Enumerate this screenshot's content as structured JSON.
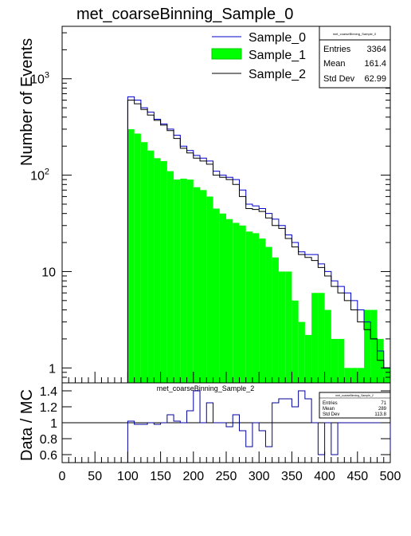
{
  "chart_data": [
    {
      "type": "histogram",
      "title": "met_coarseBinning_Sample_0",
      "ylabel": "Number of Events",
      "xlabel": "",
      "xlim": [
        0,
        500
      ],
      "ylim": [
        0.7,
        3500
      ],
      "log_y": true,
      "bin_width": 10,
      "y_tick_labels": [
        "1",
        "10",
        "10^2",
        "10^3"
      ],
      "legend": {
        "placement": "top-right",
        "entries": [
          {
            "label": "Sample_0",
            "style": "line",
            "color": "#0000cc"
          },
          {
            "label": "Sample_1",
            "style": "fill",
            "color": "#00ff00"
          },
          {
            "label": "Sample_2",
            "style": "line",
            "color": "#000000"
          }
        ]
      },
      "stats_box": {
        "header": "met_coarseBinning_Sample_0",
        "rows": [
          {
            "label": "Entries",
            "value": "3364"
          },
          {
            "label": "Mean",
            "value": "161.4"
          },
          {
            "label": "Std Dev",
            "value": "62.99"
          }
        ]
      },
      "series": [
        {
          "name": "Sample_1",
          "style": "fill",
          "color": "#00ff00",
          "bin_edges_start": 100,
          "values": [
            300,
            270,
            220,
            180,
            150,
            140,
            110,
            90,
            92,
            90,
            75,
            70,
            60,
            45,
            40,
            35,
            32,
            30,
            26,
            25,
            22,
            18,
            14,
            10,
            10,
            5,
            3,
            2.2,
            6,
            6,
            4,
            2,
            2,
            1,
            1,
            1,
            4,
            4,
            2,
            1
          ]
        },
        {
          "name": "Sample_0",
          "style": "line",
          "color": "#0000cc",
          "bin_edges_start": 100,
          "values": [
            650,
            600,
            500,
            450,
            380,
            340,
            300,
            260,
            200,
            180,
            160,
            150,
            140,
            110,
            100,
            95,
            90,
            70,
            50,
            48,
            45,
            40,
            35,
            30,
            24,
            20,
            16,
            15,
            15,
            12,
            10,
            8,
            7,
            6,
            5,
            4,
            3,
            2,
            1.5,
            1
          ]
        },
        {
          "name": "Sample_2",
          "style": "line",
          "color": "#000000",
          "bin_edges_start": 100,
          "values": [
            600,
            550,
            480,
            420,
            370,
            330,
            290,
            240,
            190,
            170,
            150,
            140,
            130,
            100,
            95,
            90,
            80,
            60,
            45,
            44,
            42,
            36,
            30,
            28,
            22,
            18,
            15,
            14,
            13,
            11,
            9,
            7,
            6,
            5,
            4,
            3,
            2.5,
            2,
            1.2,
            1
          ]
        }
      ]
    },
    {
      "type": "ratio",
      "title": "met_coarseBinning_Sample_2",
      "ylabel": "Data / MC",
      "xlabel": "",
      "xlim": [
        0,
        500
      ],
      "ylim": [
        0.5,
        1.5
      ],
      "x_ticks": [
        "0",
        "50",
        "100",
        "150",
        "200",
        "250",
        "300",
        "350",
        "400",
        "450",
        "500"
      ],
      "y_ticks": [
        "0.6",
        "0.8",
        "1",
        "1.2",
        "1.4"
      ],
      "reference_line": 1,
      "stats_box": {
        "header": "met_coarseBinning_Sample_2",
        "rows": [
          {
            "label": "Entries",
            "value": "71"
          },
          {
            "label": "Mean",
            "value": "289"
          },
          {
            "label": "Std Dev",
            "value": "113.8"
          }
        ]
      },
      "series": [
        {
          "name": "",
          "style": "line",
          "color": "#000099",
          "bin_edges_start": 100,
          "values": [
            1.02,
            0.98,
            0.98,
            1.0,
            0.98,
            1.0,
            1.1,
            1.02,
            1.0,
            1.15,
            1.4,
            1.0,
            1.25,
            1.0,
            1.0,
            0.95,
            1.1,
            0.9,
            0.7,
            1.0,
            0.9,
            0.7,
            1.25,
            1.3,
            1.3,
            1.2,
            1.4,
            1.3,
            1.0,
            0.6,
            1.0,
            0.6,
            1.0,
            1.0,
            1.0,
            1.0,
            1.0,
            1.0,
            1.0,
            1.0
          ]
        }
      ]
    }
  ]
}
